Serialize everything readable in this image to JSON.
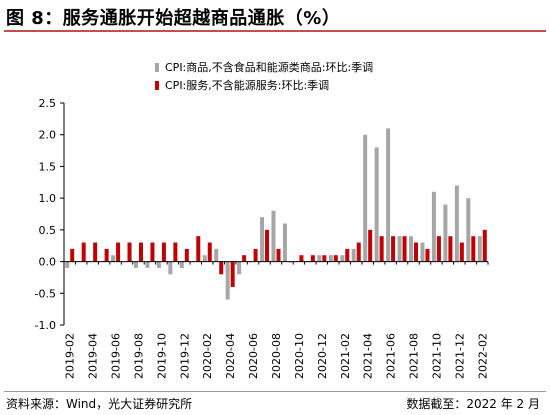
{
  "title": "图 8：服务通胀开始超越商品通胀（%）",
  "source": "资料来源：Wind，光大证券研究所",
  "date_note": "数据截至：2022 年 2 月",
  "colors": {
    "goods": "#a6a6a6",
    "services": "#c00000",
    "title_rule": "#c0504d"
  },
  "chart_data": {
    "type": "bar",
    "ylim": [
      -1.0,
      2.5
    ],
    "yticks": [
      "-1.0",
      "-0.5",
      "0.0",
      "0.5",
      "1.0",
      "1.5",
      "2.0",
      "2.5"
    ],
    "xticks": [
      "2019-02",
      "2019-04",
      "2019-06",
      "2019-08",
      "2019-10",
      "2019-12",
      "2020-02",
      "2020-04",
      "2020-06",
      "2020-08",
      "2020-10",
      "2020-12",
      "2021-02",
      "2021-04",
      "2021-06",
      "2021-08",
      "2021-10",
      "2021-12",
      "2022-02"
    ],
    "categories": [
      "2019-02",
      "2019-03",
      "2019-04",
      "2019-05",
      "2019-06",
      "2019-07",
      "2019-08",
      "2019-09",
      "2019-10",
      "2019-11",
      "2019-12",
      "2020-01",
      "2020-02",
      "2020-03",
      "2020-04",
      "2020-05",
      "2020-06",
      "2020-07",
      "2020-08",
      "2020-09",
      "2020-10",
      "2020-11",
      "2020-12",
      "2021-01",
      "2021-02",
      "2021-03",
      "2021-04",
      "2021-05",
      "2021-06",
      "2021-07",
      "2021-08",
      "2021-09",
      "2021-10",
      "2021-11",
      "2021-12",
      "2022-01",
      "2022-02"
    ],
    "legend_position": "top",
    "series": [
      {
        "name": "CPI:商品,不含食品和能源类商品:环比:季调",
        "values": [
          -0.1,
          0.0,
          0.0,
          0.0,
          0.1,
          0.0,
          -0.1,
          -0.1,
          -0.1,
          -0.2,
          -0.1,
          0.0,
          0.1,
          0.2,
          -0.6,
          -0.2,
          0.0,
          0.7,
          0.8,
          0.6,
          0.0,
          0.0,
          0.1,
          0.1,
          0.1,
          0.2,
          2.0,
          1.8,
          2.1,
          0.4,
          0.4,
          0.3,
          1.1,
          0.9,
          1.2,
          1.0,
          0.4
        ]
      },
      {
        "name": "CPI:服务,不含能源服务:环比:季调",
        "values": [
          0.2,
          0.3,
          0.3,
          0.2,
          0.3,
          0.3,
          0.3,
          0.3,
          0.3,
          0.3,
          0.2,
          0.4,
          0.3,
          -0.2,
          -0.4,
          0.1,
          0.2,
          0.5,
          0.2,
          0.0,
          0.1,
          0.1,
          0.1,
          0.1,
          0.2,
          0.3,
          0.5,
          0.4,
          0.4,
          0.4,
          0.3,
          0.2,
          0.4,
          0.4,
          0.3,
          0.4,
          0.5
        ]
      }
    ]
  }
}
